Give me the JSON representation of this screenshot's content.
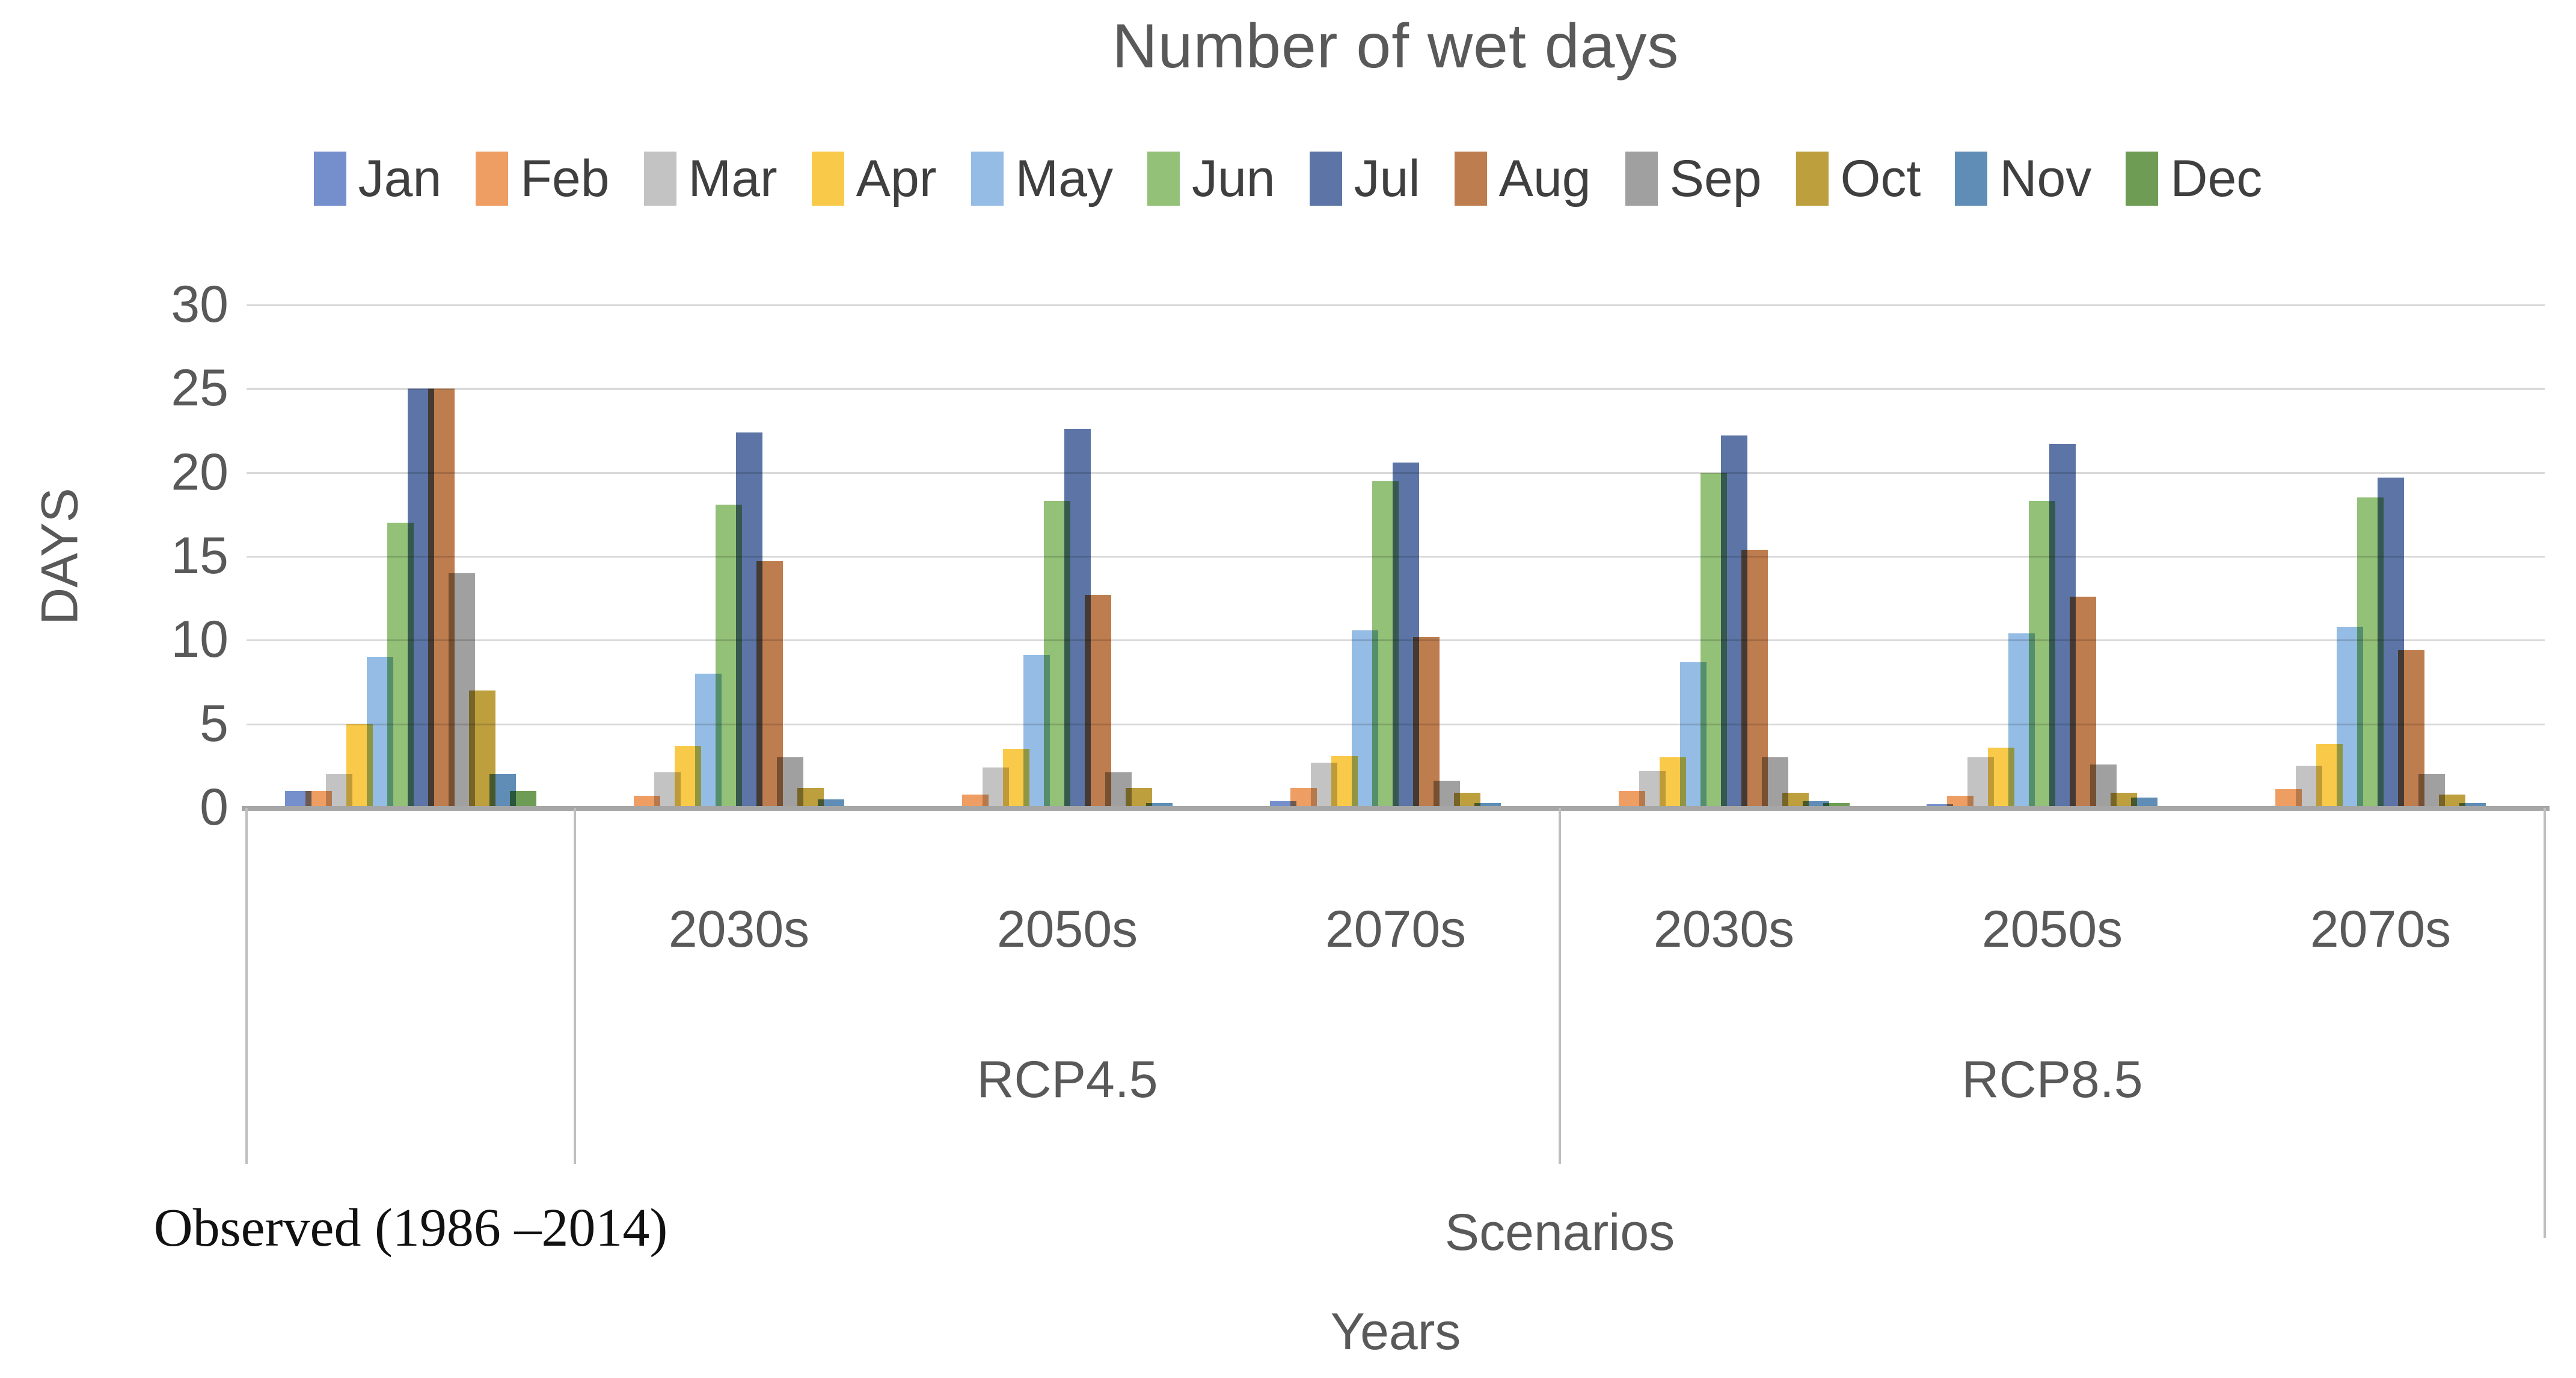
{
  "chart_data": {
    "type": "bar",
    "title": "Number of wet days",
    "ylabel": "DAYS",
    "xlabel": "Years",
    "scenario_axis_label": "Scenarios",
    "observed_label": "Observed (1986 –2014)",
    "ylim": [
      0,
      30
    ],
    "ytick_step": 5,
    "ytick_labels": [
      "0",
      "5",
      "10",
      "15",
      "20",
      "25",
      "30"
    ],
    "grid": true,
    "legend_position": "top",
    "categories": [
      "Observed (1986 –2014)",
      "RCP4.5 2030s",
      "RCP4.5 2050s",
      "RCP4.5 2070s",
      "RCP8.5 2030s",
      "RCP8.5 2050s",
      "RCP8.5 2070s"
    ],
    "group_year_labels": [
      "",
      "2030s",
      "2050s",
      "2070s",
      "2030s",
      "2050s",
      "2070s"
    ],
    "scenario_spans": [
      {
        "label": "RCP4.5",
        "start_group": 1,
        "end_group": 3
      },
      {
        "label": "RCP8.5",
        "start_group": 4,
        "end_group": 6
      }
    ],
    "series": [
      {
        "name": "Jan",
        "color": "#748FCC",
        "values": [
          1,
          0,
          0.1,
          0.4,
          0,
          0.2,
          0
        ]
      },
      {
        "name": "Feb",
        "color": "#EE9E63",
        "values": [
          1,
          0.7,
          0.8,
          1.2,
          1,
          0.7,
          1.1
        ]
      },
      {
        "name": "Mar",
        "color": "#C3C3C3",
        "values": [
          2,
          2.1,
          2.4,
          2.7,
          2.2,
          3,
          2.5
        ]
      },
      {
        "name": "Apr",
        "color": "#F9CA49",
        "values": [
          5,
          3.7,
          3.5,
          3.1,
          3,
          3.6,
          3.8
        ]
      },
      {
        "name": "May",
        "color": "#94BCE4",
        "values": [
          9,
          8,
          9.1,
          10.6,
          8.7,
          10.4,
          10.8
        ]
      },
      {
        "name": "Jun",
        "color": "#93C178",
        "values": [
          17,
          18.1,
          18.3,
          19.5,
          20,
          18.3,
          18.5
        ]
      },
      {
        "name": "Jul",
        "color": "#5C75A6",
        "values": [
          25,
          22.4,
          22.6,
          20.6,
          22.2,
          21.7,
          19.7
        ]
      },
      {
        "name": "Aug",
        "color": "#BE7D4E",
        "values": [
          25,
          14.7,
          12.7,
          10.2,
          15.4,
          12.6,
          9.4
        ]
      },
      {
        "name": "Sep",
        "color": "#A0A0A0",
        "values": [
          14,
          3,
          2.1,
          1.6,
          3,
          2.6,
          2
        ]
      },
      {
        "name": "Oct",
        "color": "#BD9F3E",
        "values": [
          7,
          1.2,
          1.2,
          0.9,
          0.9,
          0.9,
          0.8
        ]
      },
      {
        "name": "Nov",
        "color": "#5F8DB6",
        "values": [
          2,
          0.5,
          0.3,
          0.3,
          0.4,
          0.6,
          0.3
        ]
      },
      {
        "name": "Dec",
        "color": "#6F9C55",
        "values": [
          1,
          0,
          0,
          0,
          0.3,
          0,
          0
        ]
      }
    ],
    "layout_colors": {
      "title_text": "#595959",
      "axis_text": "#595959",
      "legend_text": "#3F3F3F",
      "observed_text": "#111111",
      "gridline": "#D9D9D9",
      "axis_line": "#A6A6A6",
      "category_separator": "#BFBFBF",
      "background": "#FFFFFF"
    }
  }
}
